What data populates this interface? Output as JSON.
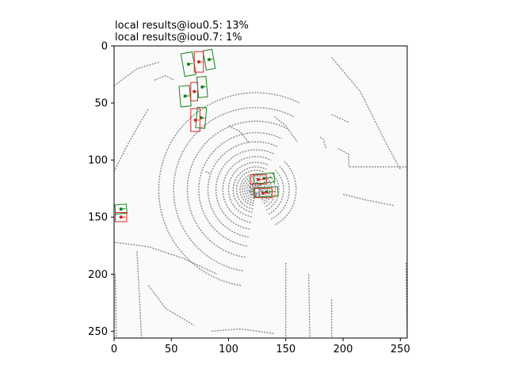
{
  "chart_data": {
    "type": "image-plot",
    "title_lines": [
      "local results@iou0.5: 13%",
      "local results@iou0.7: 1%"
    ],
    "xlim": [
      0,
      256
    ],
    "ylim": [
      256,
      0
    ],
    "x_ticks": [
      0,
      50,
      100,
      150,
      200,
      250
    ],
    "y_ticks": [
      0,
      50,
      100,
      150,
      200,
      250
    ],
    "colors": {
      "ground_truth": "#1a7f1a",
      "prediction": "#d62728",
      "lidar": "#8a8a8a",
      "background": "#fafafa"
    },
    "ground_truth_boxes": [
      {
        "cx": 65,
        "cy": 16,
        "w": 10,
        "h": 20,
        "angle": -10
      },
      {
        "cx": 83,
        "cy": 12,
        "w": 8,
        "h": 17,
        "angle": -10
      },
      {
        "cx": 77,
        "cy": 36,
        "w": 8,
        "h": 18,
        "angle": -5
      },
      {
        "cx": 62,
        "cy": 44,
        "w": 9,
        "h": 18,
        "angle": -5
      },
      {
        "cx": 76,
        "cy": 63,
        "w": 8,
        "h": 18,
        "angle": 5
      },
      {
        "cx": 131,
        "cy": 116,
        "w": 18,
        "h": 8,
        "angle": -5
      },
      {
        "cx": 133,
        "cy": 128,
        "w": 20,
        "h": 8,
        "angle": -3
      },
      {
        "cx": 6,
        "cy": 143,
        "w": 10,
        "h": 8,
        "angle": -5
      }
    ],
    "prediction_boxes": [
      {
        "cx": 74,
        "cy": 14,
        "w": 8,
        "h": 18,
        "angle": 0
      },
      {
        "cx": 70,
        "cy": 40,
        "w": 6,
        "h": 16,
        "angle": 0
      },
      {
        "cx": 71,
        "cy": 65,
        "w": 8,
        "h": 20,
        "angle": 0
      },
      {
        "cx": 126,
        "cy": 117,
        "w": 14,
        "h": 8,
        "angle": 0
      },
      {
        "cx": 130,
        "cy": 129,
        "w": 16,
        "h": 8,
        "angle": 0
      },
      {
        "cx": 6,
        "cy": 150,
        "w": 10,
        "h": 8,
        "angle": 0
      }
    ]
  }
}
